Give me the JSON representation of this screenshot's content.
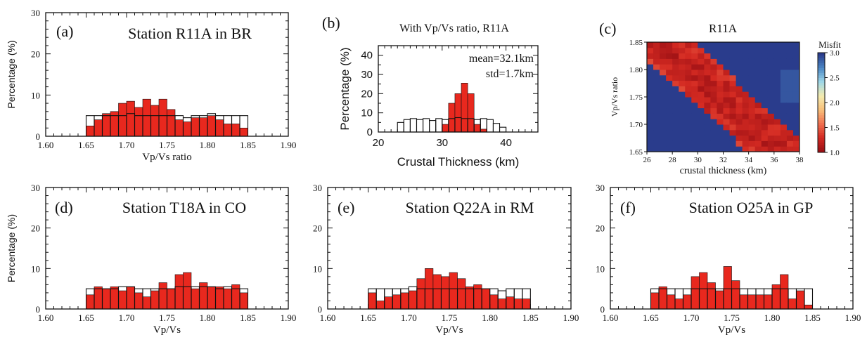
{
  "colors": {
    "bar_fill": "#e8281e",
    "outline": "#111111",
    "background": "#ffffff"
  },
  "chart_data": [
    {
      "id": "a",
      "type": "bar",
      "panel_label": "(a)",
      "title": "Station R11A in BR",
      "xlabel": "Vp/Vs ratio",
      "ylabel": "Percentage (%)",
      "xlim": [
        1.6,
        1.9
      ],
      "ylim": [
        0,
        30
      ],
      "xticks": [
        "1.60",
        "1.65",
        "1.70",
        "1.75",
        "1.80",
        "1.85",
        "1.90"
      ],
      "yticks": [
        "0",
        "10",
        "20",
        "30"
      ],
      "bin_start": 1.65,
      "bin_width": 0.01,
      "series": [
        {
          "values": [
            2.5,
            4.0,
            5.5,
            6.0,
            8.0,
            8.5,
            7.0,
            9.0,
            7.5,
            9.0,
            6.5,
            4.0,
            3.5,
            4.5,
            4.5,
            5.0,
            4.0,
            3.0,
            3.0,
            2.0
          ]
        },
        {
          "values": [
            5.0,
            5.0,
            5.0,
            5.0,
            5.0,
            5.5,
            5.0,
            5.0,
            5.0,
            5.0,
            5.0,
            5.0,
            4.5,
            5.0,
            5.0,
            5.5,
            5.0,
            5.0,
            5.0,
            5.0
          ]
        }
      ]
    },
    {
      "id": "b",
      "type": "bar",
      "panel_label": "(b)",
      "title": "With Vp/Vs ratio, R11A",
      "xlabel": "Crustal Thickness (km)",
      "ylabel": "Percentage (%)",
      "xlim": [
        20,
        45
      ],
      "ylim": [
        0,
        45
      ],
      "xticks": [
        "20",
        "30",
        "40"
      ],
      "yticks": [
        "0",
        "10",
        "20",
        "30",
        "40"
      ],
      "annotations": [
        "mean=32.1km",
        "std=1.7km"
      ],
      "bin_start": 23,
      "bin_width": 1,
      "series": [
        {
          "values": [
            0,
            0,
            0,
            0,
            0,
            0,
            0,
            4.0,
            15.0,
            20.0,
            25.5,
            20.0,
            4.0,
            1.5,
            0,
            0,
            0
          ]
        },
        {
          "values": [
            5.0,
            6.5,
            7.0,
            6.5,
            7.0,
            6.0,
            7.0,
            6.5,
            7.0,
            7.5,
            7.0,
            7.0,
            6.5,
            7.0,
            6.5,
            4.5,
            2.5
          ]
        }
      ]
    },
    {
      "id": "c",
      "type": "heatmap",
      "panel_label": "(c)",
      "title": "R11A",
      "xlabel": "crustal thickness (km)",
      "ylabel": "Vp/Vs ratio",
      "xlim": [
        26,
        38
      ],
      "ylim": [
        1.65,
        1.85
      ],
      "xticks": [
        "26",
        "28",
        "30",
        "32",
        "34",
        "36",
        "38"
      ],
      "yticks": [
        "1.65",
        "1.70",
        "1.75",
        "1.80",
        "1.85"
      ],
      "colorbar": {
        "title": "Misfit",
        "min": 1.0,
        "max": 3.0,
        "ticks": [
          "1.0",
          "1.5",
          "2.0",
          "2.5",
          "3.0"
        ],
        "colors": [
          "#9a0f14",
          "#d42a22",
          "#f07050",
          "#f8c07a",
          "#f4ecb0",
          "#9fd8e8",
          "#4a86c4",
          "#2a3c8c"
        ]
      },
      "misfit_model": {
        "trough_y_top": 1.83,
        "trough_slope": -0.021,
        "trough_ref_x": 28,
        "min_misfit": 1.05,
        "gain": 45,
        "off_band_misfit": 3.0,
        "off_band_start": 0.055
      }
    },
    {
      "id": "d",
      "type": "bar",
      "panel_label": "(d)",
      "title": "Station T18A in CO",
      "xlabel": "Vp/Vs",
      "ylabel": "Percentage (%)",
      "xlim": [
        1.6,
        1.9
      ],
      "ylim": [
        0,
        30
      ],
      "xticks": [
        "1.60",
        "1.65",
        "1.70",
        "1.75",
        "1.80",
        "1.85",
        "1.90"
      ],
      "yticks": [
        "0",
        "10",
        "20",
        "30"
      ],
      "bin_start": 1.65,
      "bin_width": 0.01,
      "series": [
        {
          "values": [
            3.5,
            5.5,
            5.0,
            5.5,
            4.5,
            5.5,
            4.0,
            3.0,
            4.5,
            6.5,
            5.0,
            8.5,
            9.0,
            5.0,
            6.5,
            5.5,
            5.5,
            5.0,
            6.0,
            4.0
          ]
        },
        {
          "values": [
            5.0,
            5.0,
            5.0,
            5.0,
            5.5,
            5.5,
            5.0,
            5.0,
            5.0,
            5.0,
            5.0,
            5.5,
            5.5,
            5.5,
            5.5,
            5.5,
            5.0,
            5.5,
            5.0,
            5.0
          ]
        }
      ]
    },
    {
      "id": "e",
      "type": "bar",
      "panel_label": "(e)",
      "title": "Station Q22A in RM",
      "xlabel": "Vp/Vs",
      "ylabel": "",
      "xlim": [
        1.6,
        1.9
      ],
      "ylim": [
        0,
        30
      ],
      "xticks": [
        "1.60",
        "1.65",
        "1.70",
        "1.75",
        "1.80",
        "1.85",
        "1.90"
      ],
      "yticks": [
        "0",
        "10",
        "20",
        "30"
      ],
      "bin_start": 1.65,
      "bin_width": 0.01,
      "series": [
        {
          "values": [
            4.0,
            2.0,
            3.0,
            3.5,
            4.0,
            4.5,
            7.5,
            10.0,
            8.5,
            8.0,
            9.0,
            7.5,
            5.5,
            6.0,
            5.0,
            3.5,
            2.5,
            3.0,
            2.5,
            2.5
          ]
        },
        {
          "values": [
            5.0,
            5.0,
            5.0,
            5.0,
            5.0,
            5.5,
            5.0,
            5.0,
            5.0,
            5.0,
            5.0,
            5.0,
            5.0,
            5.0,
            5.0,
            5.0,
            4.5,
            5.0,
            5.0,
            5.0
          ]
        }
      ]
    },
    {
      "id": "f",
      "type": "bar",
      "panel_label": "(f)",
      "title": "Station O25A in GP",
      "xlabel": "Vp/Vs",
      "ylabel": "",
      "xlim": [
        1.6,
        1.9
      ],
      "ylim": [
        0,
        30
      ],
      "xticks": [
        "1.60",
        "1.65",
        "1.70",
        "1.75",
        "1.80",
        "1.85",
        "1.90"
      ],
      "yticks": [
        "0",
        "10",
        "20",
        "30"
      ],
      "bin_start": 1.65,
      "bin_width": 0.01,
      "series": [
        {
          "values": [
            4.0,
            5.5,
            3.5,
            2.5,
            3.5,
            8.0,
            9.0,
            6.5,
            4.5,
            10.5,
            7.0,
            3.5,
            3.5,
            3.5,
            3.5,
            6.0,
            8.5,
            2.5,
            4.5,
            1.0
          ]
        },
        {
          "values": [
            5.0,
            5.0,
            5.0,
            5.0,
            5.0,
            5.0,
            5.0,
            5.0,
            5.0,
            5.0,
            5.0,
            5.0,
            5.0,
            5.0,
            5.0,
            5.0,
            5.0,
            5.0,
            5.0,
            5.0
          ]
        }
      ]
    }
  ]
}
